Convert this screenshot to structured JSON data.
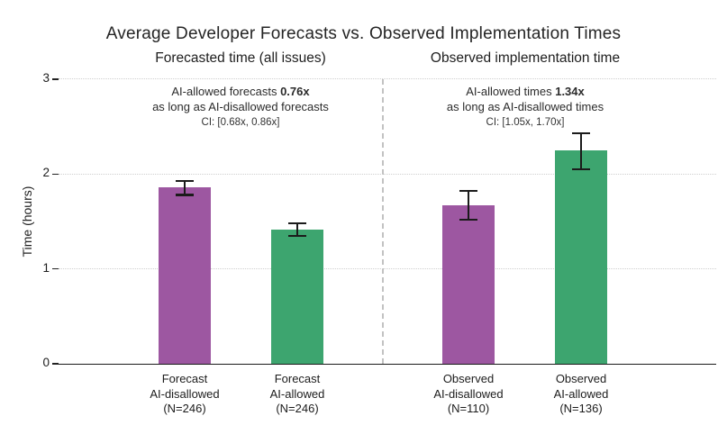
{
  "title": "Average Developer Forecasts vs. Observed Implementation Times",
  "ylabel": "Time (hours)",
  "colors": {
    "purple": "#9d57a1",
    "green": "#3da56f",
    "error": "#1b1b1b",
    "grid": "#cfcfcf",
    "divider": "#c2c2c2"
  },
  "chart_data": {
    "type": "bar",
    "title": "Average Developer Forecasts vs. Observed Implementation Times",
    "xlabel": "",
    "ylabel": "Time (hours)",
    "ylim": [
      0,
      3
    ],
    "yticks": [
      0,
      1,
      2,
      3
    ],
    "grid": "dotted horizontal",
    "panels": [
      {
        "subtitle": "Forecasted time (all issues)",
        "annotation": {
          "prefix": "AI-allowed forecasts ",
          "ratio": "0.76x",
          "line2": "as long as AI-disallowed forecasts",
          "ci": "CI: [0.68x, 0.86x]"
        },
        "bars": [
          {
            "label_lines": [
              "Forecast",
              "AI-disallowed",
              "(N=246)"
            ],
            "value": 1.86,
            "err_low": 1.78,
            "err_high": 1.93,
            "color": "purple"
          },
          {
            "label_lines": [
              "Forecast",
              "AI-allowed",
              "(N=246)"
            ],
            "value": 1.41,
            "err_low": 1.35,
            "err_high": 1.48,
            "color": "green"
          }
        ]
      },
      {
        "subtitle": "Observed implementation time",
        "annotation": {
          "prefix": "AI-allowed times ",
          "ratio": "1.34x",
          "line2": "as long as AI-disallowed times",
          "ci": "CI: [1.05x, 1.70x]"
        },
        "bars": [
          {
            "label_lines": [
              "Observed",
              "AI-disallowed",
              "(N=110)"
            ],
            "value": 1.67,
            "err_low": 1.52,
            "err_high": 1.82,
            "color": "purple"
          },
          {
            "label_lines": [
              "Observed",
              "AI-allowed",
              "(N=136)"
            ],
            "value": 2.25,
            "err_low": 2.05,
            "err_high": 2.43,
            "color": "green"
          }
        ]
      }
    ]
  }
}
